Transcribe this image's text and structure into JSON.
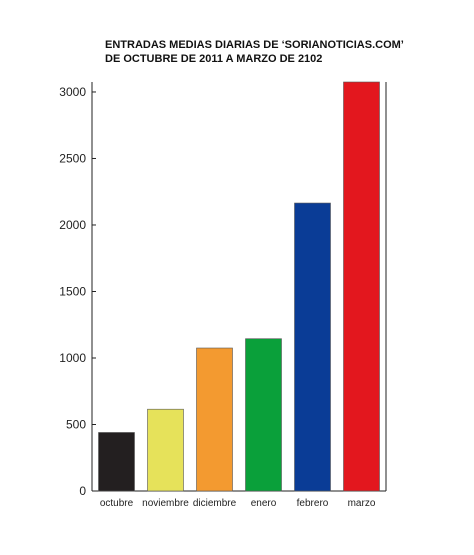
{
  "chart_data": {
    "type": "bar",
    "title_lines": [
      "ENTRADAS MEDIAS DIARIAS DE ‘SORIANOTICIAS.COM’",
      "DE OCTUBRE DE 2011 A MARZO DE 2102"
    ],
    "categories": [
      "octubre",
      "noviembre",
      "diciembre",
      "enero",
      "febrero",
      "marzo"
    ],
    "values": [
      440,
      615,
      1075,
      1145,
      2165,
      3075
    ],
    "colors": [
      "#231f20",
      "#e6e25a",
      "#f39a30",
      "#0aa03a",
      "#0a3c96",
      "#e3171e"
    ],
    "yticks": [
      0,
      500,
      1000,
      1500,
      2000,
      2500,
      3000
    ],
    "ylim": [
      0,
      3075
    ],
    "xlabel": "",
    "ylabel": "",
    "grid": false,
    "legend": false
  }
}
